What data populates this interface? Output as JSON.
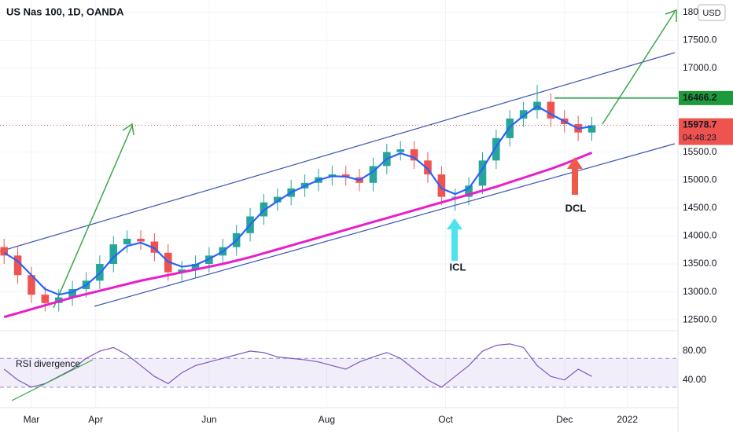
{
  "chart_data": {
    "type": "candlestick",
    "title": "US Nas 100, 1D, OANDA",
    "currency": "USD",
    "x": [
      0,
      1,
      2,
      3,
      4,
      5,
      6,
      7,
      8,
      9,
      10,
      11,
      12,
      13,
      14,
      15,
      16,
      17,
      18,
      19,
      20,
      21,
      22,
      23,
      24,
      25,
      26,
      27,
      28,
      29,
      30,
      31,
      32,
      33,
      34,
      35,
      36,
      37,
      38,
      39,
      40,
      41,
      42,
      43
    ],
    "xlim": [
      -0.3,
      49.3
    ],
    "xticks": [
      {
        "value": 2.0,
        "label": "Mar"
      },
      {
        "value": 6.7,
        "label": "Apr"
      },
      {
        "value": 15.0,
        "label": "Jun"
      },
      {
        "value": 23.6,
        "label": "Aug"
      },
      {
        "value": 32.3,
        "label": "Oct"
      },
      {
        "value": 41.0,
        "label": "Dec"
      },
      {
        "value": 45.6,
        "label": "2022"
      }
    ],
    "open": [
      13800,
      13650,
      13300,
      12950,
      12800,
      12900,
      13050,
      13200,
      13500,
      13850,
      13950,
      13900,
      13700,
      13350,
      13400,
      13500,
      13650,
      13800,
      14050,
      14350,
      14600,
      14700,
      14850,
      14950,
      15050,
      15100,
      15050,
      14950,
      15250,
      15500,
      15550,
      15350,
      15100,
      14700,
      14700,
      14900,
      15350,
      15750,
      16100,
      16250,
      16400,
      16100,
      16000,
      15850
    ],
    "high": [
      13950,
      13800,
      13450,
      13100,
      13050,
      13200,
      13350,
      13650,
      14000,
      14100,
      14100,
      14050,
      13850,
      13550,
      13650,
      13800,
      13950,
      14200,
      14500,
      14750,
      14850,
      15000,
      15100,
      15200,
      15250,
      15250,
      15200,
      15400,
      15650,
      15700,
      15700,
      15500,
      15250,
      14850,
      15050,
      15500,
      15900,
      16250,
      16400,
      16700,
      16550,
      16250,
      16150,
      16130
    ],
    "low": [
      13500,
      13150,
      12800,
      12650,
      12650,
      12750,
      12900,
      13050,
      13350,
      13700,
      13750,
      13550,
      13200,
      13200,
      13250,
      13350,
      13500,
      13650,
      13900,
      14200,
      14450,
      14550,
      14700,
      14800,
      14900,
      14900,
      14800,
      14800,
      15100,
      15350,
      15200,
      14950,
      14550,
      14450,
      14550,
      14750,
      15200,
      15600,
      15950,
      16100,
      15950,
      15850,
      15700,
      15700
    ],
    "close": [
      13650,
      13300,
      12950,
      12800,
      12900,
      13050,
      13200,
      13500,
      13850,
      13950,
      13900,
      13700,
      13350,
      13400,
      13500,
      13650,
      13800,
      14050,
      14350,
      14600,
      14700,
      14850,
      14950,
      15050,
      15100,
      15050,
      14950,
      15250,
      15500,
      15550,
      15350,
      15100,
      14700,
      14700,
      14900,
      15350,
      15750,
      16100,
      16250,
      16400,
      16100,
      16000,
      15850,
      15980
    ],
    "up_color": "#26a69a",
    "down_color": "#ef5350",
    "series": [
      {
        "color": "#2962ff",
        "values": [
          13700,
          13550,
          13300,
          13050,
          12950,
          13000,
          13120,
          13330,
          13620,
          13820,
          13880,
          13780,
          13540,
          13450,
          13480,
          13590,
          13720,
          13920,
          14200,
          14460,
          14620,
          14780,
          14890,
          15000,
          15070,
          15060,
          15000,
          15150,
          15380,
          15480,
          15400,
          15200,
          14850,
          14750,
          14850,
          15200,
          15600,
          15950,
          16150,
          16320,
          16180,
          16050,
          15920,
          15960
        ]
      },
      {
        "color": "#e91ec8",
        "values": [
          12550,
          12620,
          12690,
          12760,
          12830,
          12900,
          12960,
          13020,
          13080,
          13140,
          13200,
          13250,
          13300,
          13350,
          13400,
          13450,
          13500,
          13560,
          13620,
          13690,
          13760,
          13830,
          13900,
          13970,
          14040,
          14110,
          14180,
          14250,
          14320,
          14390,
          14460,
          14530,
          14600,
          14670,
          14740,
          14810,
          14880,
          14960,
          15040,
          15120,
          15200,
          15290,
          15390,
          15490
        ]
      }
    ],
    "ylim": [
      12320,
      18150
    ],
    "yticks": [
      {
        "value": 12500,
        "label": "12500.0"
      },
      {
        "value": 13000,
        "label": "13000.0"
      },
      {
        "value": 13500,
        "label": "13500.0"
      },
      {
        "value": 14000,
        "label": "14000.0"
      },
      {
        "value": 14500,
        "label": "14500.0"
      },
      {
        "value": 15000,
        "label": "15000.0"
      },
      {
        "value": 15500,
        "label": "15500.0"
      },
      {
        "value": 16000,
        "label": "16000.0"
      },
      {
        "value": 16500,
        "label": "16500.0"
      },
      {
        "value": 17000,
        "label": "17000.0"
      },
      {
        "value": 17500,
        "label": "17500.0"
      },
      {
        "value": 18000,
        "label": "18000.0"
      }
    ],
    "level": {
      "value": 16466.2,
      "color": "#1e9a3a"
    },
    "last_price": {
      "value": 15978.7,
      "color": "#ef5350",
      "countdown": "04:48:23"
    },
    "annotations": [
      {
        "text": "ICL",
        "color": "#2a6fd6"
      },
      {
        "text": "DCL",
        "color": "#e8473b"
      },
      {
        "text": "RSI divergence",
        "color": "#e8245a"
      }
    ],
    "rsi": {
      "color": "#7e57c2",
      "values": [
        55,
        40,
        30,
        35,
        45,
        55,
        70,
        80,
        85,
        75,
        60,
        45,
        35,
        50,
        60,
        65,
        70,
        75,
        80,
        78,
        72,
        70,
        68,
        65,
        60,
        55,
        65,
        72,
        78,
        70,
        55,
        40,
        30,
        45,
        60,
        80,
        88,
        90,
        85,
        60,
        45,
        40,
        55,
        45
      ],
      "ylim": [
        6,
        104
      ],
      "yticks": [
        {
          "value": 40,
          "label": "40.00"
        },
        {
          "value": 80,
          "label": "80.00"
        }
      ],
      "levels": [
        30,
        70
      ]
    }
  }
}
